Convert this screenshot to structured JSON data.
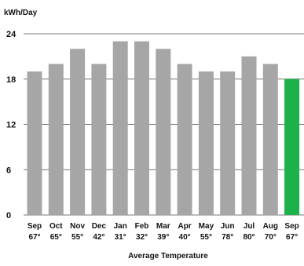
{
  "chart_data": {
    "type": "bar",
    "units": "kWh/Day",
    "categories": [
      "Sep",
      "Oct",
      "Nov",
      "Dec",
      "Jan",
      "Feb",
      "Mar",
      "Apr",
      "May",
      "Jun",
      "Jul",
      "Aug",
      "Sep"
    ],
    "temperatures": [
      "67°",
      "65°",
      "55°",
      "42°",
      "31°",
      "32°",
      "39°",
      "40°",
      "55°",
      "78°",
      "80°",
      "70°",
      "67°"
    ],
    "values": [
      19,
      20,
      22,
      20,
      23,
      23,
      22,
      20,
      19,
      19,
      21,
      20,
      18
    ],
    "ylim": [
      0,
      24
    ],
    "yticks": [
      0,
      6,
      12,
      18,
      24
    ],
    "xlabel": "Average Temperature",
    "ylabel": "",
    "grid": "horizontal",
    "colors": {
      "bar": "#a6a6a6",
      "highlight": "#1db14b"
    },
    "highlight_index": 12
  }
}
